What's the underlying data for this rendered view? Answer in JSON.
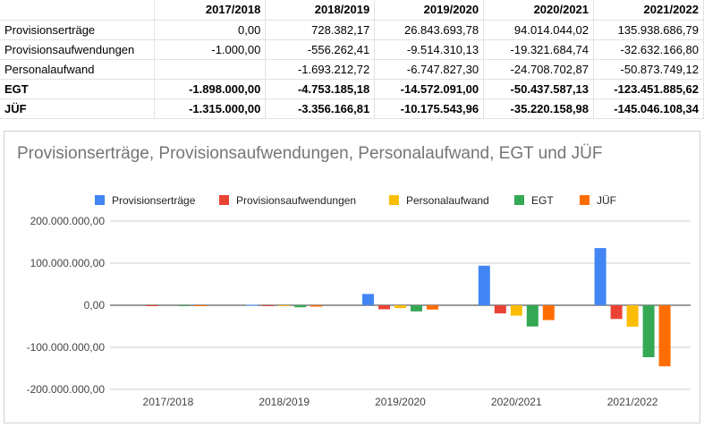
{
  "table": {
    "header": [
      "",
      "2017/2018",
      "2018/2019",
      "2019/2020",
      "2020/2021",
      "2021/2022"
    ],
    "rows": [
      {
        "label": "Provisionserträge",
        "bold": false,
        "cells": [
          "0,00",
          "728.382,17",
          "26.843.693,78",
          "94.014.044,02",
          "135.938.686,79"
        ]
      },
      {
        "label": "Provisionsaufwendungen",
        "bold": false,
        "cells": [
          "-1.000,00",
          "-556.262,41",
          "-9.514.310,13",
          "-19.321.684,74",
          "-32.632.166,80"
        ]
      },
      {
        "label": "Personalaufwand",
        "bold": false,
        "cells": [
          "",
          "-1.693.212,72",
          "-6.747.827,30",
          "-24.708.702,87",
          "-50.873.749,12"
        ]
      },
      {
        "label": "EGT",
        "bold": true,
        "cells": [
          "-1.898.000,00",
          "-4.753.185,18",
          "-14.572.091,00",
          "-50.437.587,13",
          "-123.451.885,62"
        ]
      },
      {
        "label": "JÜF",
        "bold": true,
        "cells": [
          "-1.315.000,00",
          "-3.356.166,81",
          "-10.175.543,96",
          "-35.220.158,98",
          "-145.046.108,34"
        ]
      }
    ]
  },
  "chart_data": {
    "type": "bar",
    "title": "Provisionserträge, Provisionsaufwendungen, Personalaufwand, EGT und JÜF",
    "categories": [
      "2017/2018",
      "2018/2019",
      "2019/2020",
      "2020/2021",
      "2021/2022"
    ],
    "series": [
      {
        "name": "Provisionserträge",
        "color": "#4285f4",
        "values": [
          0,
          728382.17,
          26843693.78,
          94014044.02,
          135938686.79
        ]
      },
      {
        "name": "Provisionsaufwendungen",
        "color": "#ea4335",
        "values": [
          -1000,
          -556262.41,
          -9514310.13,
          -19321684.74,
          -32632166.8
        ]
      },
      {
        "name": "Personalaufwand",
        "color": "#fbbc04",
        "values": [
          0,
          -1693212.72,
          -6747827.3,
          -24708702.87,
          -50873749.12
        ]
      },
      {
        "name": "EGT",
        "color": "#34a853",
        "values": [
          -1898000,
          -4753185.18,
          -14572091,
          -50437587.13,
          -123451885.62
        ]
      },
      {
        "name": "JÜF",
        "color": "#ff6d01",
        "values": [
          -1315000,
          -3356166.81,
          -10175543.96,
          -35220158.98,
          -145046108.34
        ]
      }
    ],
    "ylim": [
      -200000000,
      200000000
    ],
    "yticks": [
      200000000,
      100000000,
      0,
      -100000000,
      -200000000
    ],
    "ytick_labels": [
      "200.000.000,00",
      "100.000.000,00",
      "0,00",
      "-100.000.000,00",
      "-200.000.000,00"
    ],
    "legend_position": "top",
    "grid": true
  }
}
